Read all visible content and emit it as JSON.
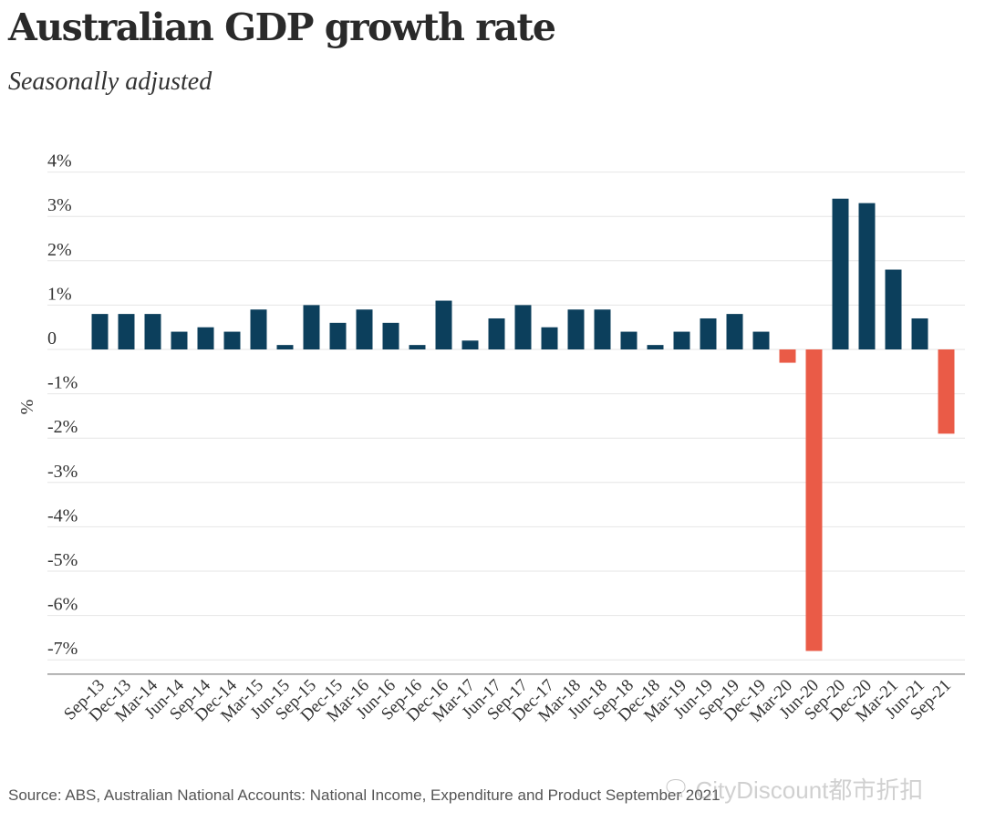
{
  "chart_data": {
    "type": "bar",
    "title": "Australian GDP growth rate",
    "subtitle": "Seasonally adjusted",
    "ylabel": "%",
    "xlabel": "",
    "ylim": [
      -7.2,
      4
    ],
    "yticks": [
      {
        "value": 4,
        "label": "4%"
      },
      {
        "value": 3,
        "label": "3%"
      },
      {
        "value": 2,
        "label": "2%"
      },
      {
        "value": 1,
        "label": "1%"
      },
      {
        "value": 0,
        "label": "0"
      },
      {
        "value": -1,
        "label": "-1%"
      },
      {
        "value": -2,
        "label": "-2%"
      },
      {
        "value": -3,
        "label": "-3%"
      },
      {
        "value": -4,
        "label": "-4%"
      },
      {
        "value": -5,
        "label": "-5%"
      },
      {
        "value": -6,
        "label": "-6%"
      },
      {
        "value": -7,
        "label": "-7%"
      }
    ],
    "grid": true,
    "categories": [
      "Sep-13",
      "Dec-13",
      "Mar-14",
      "Jun-14",
      "Sep-14",
      "Dec-14",
      "Mar-15",
      "Jun-15",
      "Sep-15",
      "Dec-15",
      "Mar-16",
      "Jun-16",
      "Sep-16",
      "Dec-16",
      "Mar-17",
      "Jun-17",
      "Sep-17",
      "Dec-17",
      "Mar-18",
      "Jun-18",
      "Sep-18",
      "Dec-18",
      "Mar-19",
      "Jun-19",
      "Sep-19",
      "Dec-19",
      "Mar-20",
      "Jun-20",
      "Sep-20",
      "Dec-20",
      "Mar-21",
      "Jun-21",
      "Sep-21"
    ],
    "values": [
      0.8,
      0.8,
      0.8,
      0.4,
      0.5,
      0.4,
      0.9,
      0.1,
      1.0,
      0.6,
      0.9,
      0.6,
      0.1,
      1.1,
      0.2,
      0.7,
      1.0,
      0.5,
      0.9,
      0.9,
      0.4,
      0.1,
      0.4,
      0.7,
      0.8,
      0.4,
      -0.3,
      -6.8,
      3.4,
      3.3,
      1.8,
      0.7,
      -1.9
    ],
    "colors": {
      "positive": "#0c3f5c",
      "negative": "#ea5b47"
    }
  },
  "source": "Source: ABS, Australian National Accounts: National Income, Expenditure and Product September 2021",
  "watermark": "CityDiscount都市折扣"
}
